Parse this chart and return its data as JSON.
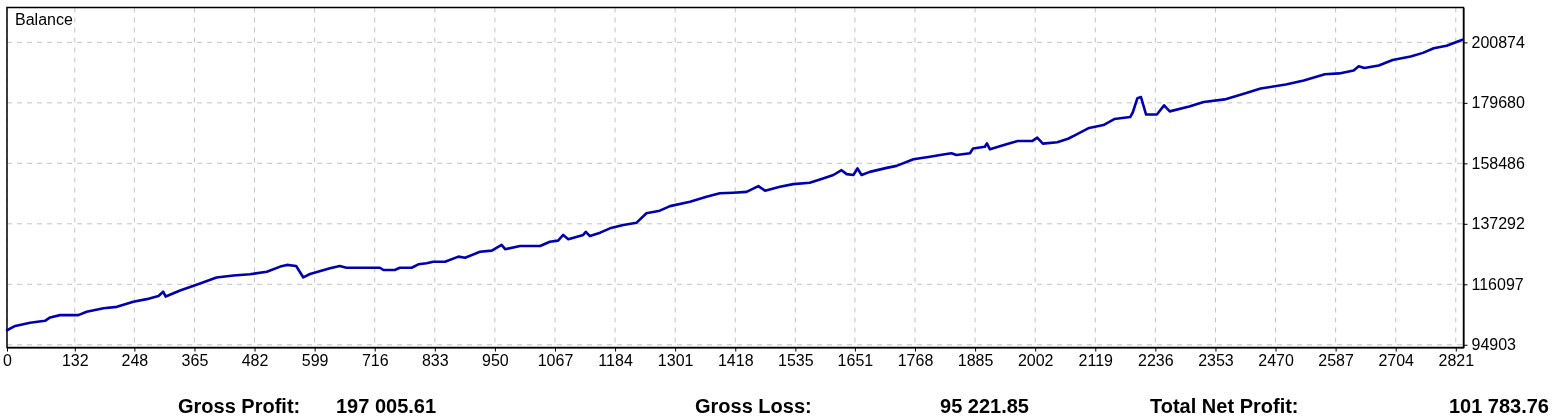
{
  "chart_data": {
    "type": "line",
    "title": "Balance",
    "x": [
      0,
      16,
      45,
      74,
      84,
      103,
      139,
      155,
      188,
      214,
      246,
      272,
      295,
      304,
      309,
      337,
      376,
      408,
      441,
      473,
      506,
      532,
      545,
      563,
      577,
      590,
      629,
      648,
      661,
      726,
      733,
      755,
      765,
      788,
      801,
      817,
      830,
      853,
      879,
      892,
      921,
      944,
      963,
      970,
      999,
      1038,
      1057,
      1073,
      1083,
      1093,
      1122,
      1127,
      1135,
      1155,
      1174,
      1200,
      1226,
      1245,
      1271,
      1291,
      1330,
      1362,
      1388,
      1414,
      1440,
      1463,
      1476,
      1505,
      1531,
      1563,
      1589,
      1609,
      1625,
      1635,
      1648,
      1656,
      1664,
      1680,
      1713,
      1732,
      1765,
      1797,
      1823,
      1839,
      1849,
      1875,
      1881,
      1904,
      1908,
      1914,
      1946,
      1968,
      1996,
      2006,
      2017,
      2045,
      2066,
      2080,
      2107,
      2135,
      2156,
      2187,
      2192,
      2201,
      2208,
      2218,
      2239,
      2253,
      2264,
      2302,
      2330,
      2371,
      2413,
      2441,
      2490,
      2525,
      2566,
      2594,
      2622,
      2632,
      2643,
      2671,
      2698,
      2733,
      2757,
      2778,
      2803,
      2834
    ],
    "series": [
      {
        "color": "#0000b0",
        "values": [
          100000,
          101500,
          102600,
          103300,
          104500,
          105300,
          105300,
          106500,
          107700,
          108200,
          110000,
          110900,
          112000,
          113500,
          111800,
          113900,
          116400,
          118500,
          119200,
          119600,
          120500,
          122300,
          122900,
          122500,
          118500,
          119700,
          121700,
          122500,
          121900,
          121900,
          121100,
          121100,
          121900,
          121900,
          123100,
          123500,
          124000,
          124000,
          125800,
          125400,
          127500,
          127900,
          129900,
          128400,
          129500,
          129500,
          131000,
          131400,
          133400,
          131900,
          133400,
          134500,
          133000,
          134200,
          135700,
          136900,
          137700,
          141000,
          141900,
          143500,
          145000,
          146800,
          148000,
          148200,
          148500,
          150500,
          148900,
          150300,
          151200,
          151700,
          153200,
          154400,
          156100,
          154700,
          154400,
          156700,
          154400,
          155500,
          156900,
          157600,
          159900,
          160800,
          161600,
          162000,
          161400,
          162000,
          163700,
          164300,
          165500,
          163400,
          165200,
          166300,
          166300,
          167500,
          165400,
          165900,
          167100,
          168400,
          170900,
          171900,
          174000,
          174700,
          176300,
          181300,
          181700,
          175600,
          175600,
          178800,
          176700,
          178400,
          180000,
          180900,
          183100,
          184700,
          186100,
          187500,
          189700,
          190000,
          191000,
          192500,
          191900,
          192800,
          194700,
          195900,
          197200,
          198800,
          199700,
          201800
        ]
      }
    ],
    "xlim": [
      0,
      2836
    ],
    "xticks": [
      0,
      132,
      248,
      365,
      482,
      599,
      716,
      833,
      950,
      1067,
      1184,
      1301,
      1418,
      1535,
      1651,
      1768,
      1885,
      2002,
      2119,
      2236,
      2353,
      2470,
      2587,
      2704,
      2821
    ],
    "ylim": [
      93950,
      213100
    ],
    "yticks": [
      94903,
      116097,
      137292,
      158486,
      179680,
      200874
    ],
    "grid": true,
    "annotations": [
      "Gross Profit:",
      "197 005.61",
      "Gross Loss:",
      "95 221.85",
      "Total Net Profit:",
      "101 783.76"
    ]
  }
}
